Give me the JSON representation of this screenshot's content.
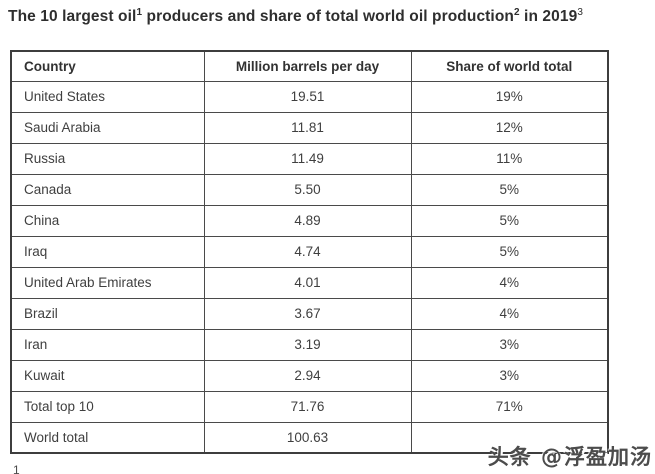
{
  "title": {
    "t1": "The 10 largest oil",
    "sup1": "1",
    "t2": " producers and share of total world oil production",
    "sup2": "2",
    "t3": " in 2019",
    "sup3": "3"
  },
  "chart_data": {
    "type": "table",
    "title": "The 10 largest oil producers and share of total world oil production in 2019",
    "columns": [
      "Country",
      "Million barrels per day",
      "Share of world total"
    ],
    "rows": [
      [
        "United States",
        "19.51",
        "19%"
      ],
      [
        "Saudi Arabia",
        "11.81",
        "12%"
      ],
      [
        "Russia",
        "11.49",
        "11%"
      ],
      [
        "Canada",
        "5.50",
        "5%"
      ],
      [
        "China",
        "4.89",
        "5%"
      ],
      [
        "Iraq",
        "4.74",
        "5%"
      ],
      [
        "United Arab Emirates",
        "4.01",
        "4%"
      ],
      [
        "Brazil",
        "3.67",
        "4%"
      ],
      [
        "Iran",
        "3.19",
        "3%"
      ],
      [
        "Kuwait",
        "2.94",
        "3%"
      ],
      [
        "Total top 10",
        "71.76",
        "71%"
      ],
      [
        "World total",
        "100.63",
        ""
      ]
    ],
    "footnote_markers_in_title": [
      "1",
      "2",
      "3"
    ],
    "layout": {
      "grid": "full-borders",
      "value_alignment": "center",
      "country_alignment": "left"
    }
  },
  "footnote": {
    "partial_marker": "1"
  },
  "watermark": {
    "brand": "头条",
    "at": "@",
    "user": "浮盈加汤"
  },
  "colors": {
    "background": "#ffffff",
    "title_text": "#2e2e2e",
    "body_text": "#3f3f3f",
    "border": "#4a4a4a",
    "outer_border": "#3d3d3d",
    "watermark_text": "#4c4c4c"
  }
}
